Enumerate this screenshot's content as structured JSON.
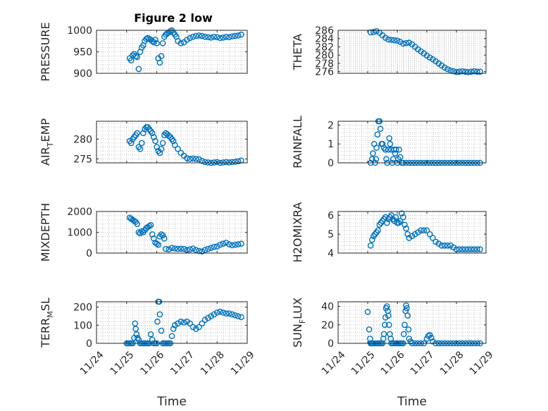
{
  "figure": {
    "title": "Figure 2 low"
  },
  "chart_data": [
    {
      "type": "scatter",
      "ylabel": "PRESSURE",
      "ylabel_sub": "",
      "ylim": [
        900,
        1000
      ],
      "yticks": [
        900,
        950,
        1000
      ],
      "ytick_labels": [
        "900",
        "950",
        "1000"
      ],
      "x_tick_labels_visible": false,
      "xlabel": "",
      "x": [
        1.1,
        1.15,
        1.2,
        1.25,
        1.3,
        1.35,
        1.4,
        1.45,
        1.5,
        1.55,
        1.6,
        1.65,
        1.7,
        1.75,
        1.8,
        1.85,
        1.9,
        1.95,
        2.0,
        2.05,
        2.1,
        2.15,
        2.2,
        2.25,
        2.3,
        2.35,
        2.4,
        2.45,
        2.5,
        2.55,
        2.6,
        2.65,
        2.7,
        2.8,
        2.9,
        3.0,
        3.1,
        3.2,
        3.3,
        3.4,
        3.5,
        3.6,
        3.7,
        3.8,
        3.9,
        4.0,
        4.1,
        4.2,
        4.3,
        4.4,
        4.5,
        4.6,
        4.7,
        4.8
      ],
      "y": [
        935,
        930,
        942,
        945,
        940,
        938,
        910,
        950,
        960,
        965,
        975,
        980,
        982,
        980,
        978,
        975,
        972,
        978,
        970,
        935,
        925,
        940,
        970,
        985,
        990,
        993,
        995,
        998,
        1000,
        995,
        990,
        985,
        975,
        970,
        972,
        978,
        982,
        985,
        987,
        988,
        987,
        985,
        984,
        983,
        985,
        984,
        982,
        983,
        985,
        984,
        986,
        987,
        988,
        990
      ]
    },
    {
      "type": "scatter",
      "ylabel": "THETA",
      "ylabel_sub": "",
      "ylim": [
        275.6,
        286
      ],
      "yticks": [
        276,
        278,
        280,
        282,
        284,
        286
      ],
      "ytick_labels": [
        "276",
        "278",
        "280",
        "282",
        "284",
        "286"
      ],
      "x_tick_labels_visible": false,
      "xlabel": "",
      "x": [
        1.1,
        1.2,
        1.3,
        1.4,
        1.5,
        1.6,
        1.7,
        1.8,
        1.9,
        2.0,
        2.1,
        2.2,
        2.3,
        2.4,
        2.5,
        2.6,
        2.7,
        2.8,
        2.9,
        3.0,
        3.1,
        3.2,
        3.3,
        3.4,
        3.5,
        3.6,
        3.7,
        3.8,
        3.9,
        4.0,
        4.1,
        4.2,
        4.3,
        4.4,
        4.5,
        4.6,
        4.7,
        4.8
      ],
      "y": [
        285.5,
        285.6,
        285.8,
        285.4,
        284.8,
        284.2,
        283.8,
        283.7,
        283.6,
        283.5,
        283.2,
        282.8,
        282.9,
        283.0,
        282.6,
        282.0,
        281.4,
        280.9,
        280.4,
        279.9,
        279.4,
        279.0,
        278.5,
        278.0,
        277.5,
        277.0,
        276.6,
        276.3,
        276.1,
        275.9,
        276.0,
        276.1,
        276.0,
        275.9,
        276.0,
        276.1,
        276.0,
        276.0
      ]
    },
    {
      "type": "scatter",
      "ylabel": "AIR",
      "ylabel_sub": "T",
      "ylabel_tail": "EMP",
      "ylim": [
        274,
        284.5
      ],
      "yticks": [
        275,
        280
      ],
      "ytick_labels": [
        "275",
        "280"
      ],
      "x_tick_labels_visible": false,
      "xlabel": "",
      "x": [
        1.1,
        1.15,
        1.2,
        1.25,
        1.3,
        1.35,
        1.4,
        1.45,
        1.5,
        1.55,
        1.6,
        1.65,
        1.7,
        1.75,
        1.8,
        1.85,
        1.9,
        1.95,
        2.0,
        2.05,
        2.1,
        2.15,
        2.2,
        2.25,
        2.3,
        2.35,
        2.4,
        2.45,
        2.5,
        2.55,
        2.6,
        2.7,
        2.8,
        2.9,
        3.0,
        3.1,
        3.2,
        3.3,
        3.4,
        3.5,
        3.6,
        3.7,
        3.8,
        3.9,
        4.0,
        4.1,
        4.2,
        4.3,
        4.4,
        4.5,
        4.6,
        4.7,
        4.8
      ],
      "y": [
        279.5,
        279.0,
        280.0,
        280.5,
        281.0,
        281.5,
        278.0,
        277.5,
        279.0,
        281.5,
        282.5,
        283.0,
        283.0,
        282.5,
        282.0,
        281.5,
        280.5,
        279.5,
        278.0,
        277.0,
        276.5,
        277.5,
        279.0,
        281.0,
        281.5,
        281.2,
        280.8,
        280.5,
        280.0,
        279.5,
        278.5,
        277.5,
        276.5,
        275.8,
        275.2,
        275.0,
        275.1,
        275.0,
        274.9,
        274.5,
        274.2,
        274.1,
        274.0,
        274.1,
        274.2,
        274.0,
        274.1,
        274.2,
        274.1,
        274.2,
        274.3,
        274.4,
        274.6
      ]
    },
    {
      "type": "scatter",
      "ylabel": "RAINFALL",
      "ylabel_sub": "",
      "ylim": [
        0,
        2.2
      ],
      "yticks": [
        0,
        1,
        2
      ],
      "ytick_labels": [
        "0",
        "1",
        "2"
      ],
      "x_tick_labels_visible": false,
      "xlabel": "",
      "x": [
        1.1,
        1.15,
        1.18,
        1.22,
        1.25,
        1.28,
        1.3,
        1.33,
        1.36,
        1.4,
        1.43,
        1.47,
        1.5,
        1.55,
        1.6,
        1.63,
        1.66,
        1.7,
        1.73,
        1.76,
        1.8,
        1.83,
        1.86,
        1.9,
        1.93,
        1.96,
        2.0,
        2.03,
        2.06,
        2.1,
        2.15,
        2.2,
        2.3,
        2.4,
        2.5,
        2.6,
        2.7,
        2.8,
        2.9,
        3.0,
        3.1,
        3.2,
        3.3,
        3.4,
        3.5,
        3.6,
        3.7,
        3.8,
        3.9,
        4.0,
        4.1,
        4.2,
        4.3,
        4.4,
        4.5,
        4.6,
        4.7,
        4.8
      ],
      "y": [
        0,
        0.2,
        0.5,
        1.0,
        0,
        0.2,
        0.8,
        1.5,
        2.2,
        2.2,
        1.8,
        1.0,
        1.0,
        0.8,
        0.7,
        0.2,
        0,
        0.7,
        1.3,
        1.0,
        0.7,
        0,
        0.2,
        0.7,
        0.5,
        0.7,
        0,
        0.2,
        0.7,
        0.3,
        0,
        0,
        0,
        0,
        0,
        0,
        0,
        0,
        0,
        0,
        0,
        0,
        0,
        0,
        0,
        0,
        0,
        0,
        0,
        0,
        0,
        0,
        0,
        0,
        0,
        0,
        0,
        0
      ]
    },
    {
      "type": "scatter",
      "ylabel": "MIXDEPTH",
      "ylabel_sub": "",
      "ylim": [
        0,
        2000
      ],
      "yticks": [
        0,
        1000,
        2000
      ],
      "ytick_labels": [
        "0",
        "1000",
        "2000"
      ],
      "x_tick_labels_visible": false,
      "xlabel": "",
      "x": [
        1.1,
        1.15,
        1.2,
        1.25,
        1.3,
        1.35,
        1.4,
        1.45,
        1.5,
        1.55,
        1.6,
        1.65,
        1.7,
        1.75,
        1.8,
        1.85,
        1.9,
        1.95,
        2.0,
        2.05,
        2.1,
        2.15,
        2.2,
        2.25,
        2.3,
        2.4,
        2.5,
        2.6,
        2.7,
        2.8,
        2.9,
        3.0,
        3.1,
        3.2,
        3.3,
        3.4,
        3.5,
        3.6,
        3.7,
        3.8,
        3.9,
        4.0,
        4.1,
        4.2,
        4.3,
        4.4,
        4.5,
        4.6,
        4.7,
        4.8
      ],
      "y": [
        1700,
        1650,
        1600,
        1550,
        1500,
        1400,
        1000,
        950,
        1050,
        1000,
        1100,
        1200,
        1250,
        1300,
        1350,
        900,
        700,
        500,
        450,
        400,
        800,
        900,
        850,
        700,
        200,
        180,
        250,
        220,
        200,
        210,
        200,
        150,
        180,
        220,
        150,
        100,
        80,
        150,
        200,
        250,
        300,
        320,
        400,
        450,
        500,
        420,
        380,
        400,
        420,
        450
      ]
    },
    {
      "type": "scatter",
      "ylabel": "H2OMIXRA",
      "ylabel_sub": "",
      "ylim": [
        4,
        6.2
      ],
      "yticks": [
        4,
        5,
        6
      ],
      "ytick_labels": [
        "4",
        "5",
        "6"
      ],
      "x_tick_labels_visible": false,
      "xlabel": "",
      "x": [
        1.1,
        1.15,
        1.2,
        1.25,
        1.3,
        1.35,
        1.4,
        1.45,
        1.5,
        1.55,
        1.6,
        1.65,
        1.7,
        1.75,
        1.8,
        1.85,
        1.9,
        1.95,
        2.0,
        2.05,
        2.1,
        2.15,
        2.2,
        2.25,
        2.3,
        2.35,
        2.4,
        2.5,
        2.6,
        2.7,
        2.8,
        2.9,
        3.0,
        3.1,
        3.2,
        3.3,
        3.4,
        3.5,
        3.6,
        3.7,
        3.8,
        3.9,
        4.0,
        4.1,
        4.2,
        4.3,
        4.4,
        4.5,
        4.6,
        4.7,
        4.8
      ],
      "y": [
        4.4,
        4.7,
        4.9,
        5.0,
        5.1,
        5.2,
        5.5,
        5.6,
        5.7,
        5.8,
        5.9,
        5.6,
        5.8,
        5.9,
        6.0,
        5.8,
        5.7,
        5.9,
        5.6,
        5.6,
        5.7,
        6.1,
        5.9,
        5.5,
        5.3,
        5.0,
        4.8,
        4.9,
        5.0,
        5.1,
        5.2,
        5.2,
        5.2,
        5.0,
        4.8,
        4.6,
        4.5,
        4.4,
        4.4,
        4.4,
        4.4,
        4.3,
        4.2,
        4.2,
        4.2,
        4.2,
        4.2,
        4.2,
        4.2,
        4.2,
        4.2
      ]
    },
    {
      "type": "scatter",
      "ylabel": "TERR",
      "ylabel_sub": "M",
      "ylabel_tail": "SL",
      "ylim": [
        0,
        230
      ],
      "yticks": [
        0,
        100,
        200
      ],
      "ytick_labels": [
        "0",
        "100",
        "200"
      ],
      "x_tick_labels_visible": true,
      "xlabel": "Time",
      "x": [
        1.0,
        1.05,
        1.1,
        1.15,
        1.2,
        1.25,
        1.28,
        1.3,
        1.33,
        1.36,
        1.4,
        1.45,
        1.5,
        1.55,
        1.6,
        1.65,
        1.7,
        1.75,
        1.8,
        1.85,
        1.9,
        1.95,
        2.0,
        2.02,
        2.05,
        2.08,
        2.1,
        2.15,
        2.2,
        2.25,
        2.3,
        2.35,
        2.4,
        2.45,
        2.5,
        2.55,
        2.6,
        2.7,
        2.8,
        2.9,
        3.0,
        3.1,
        3.2,
        3.3,
        3.4,
        3.5,
        3.6,
        3.7,
        3.8,
        3.9,
        4.0,
        4.1,
        4.2,
        4.3,
        4.4,
        4.5,
        4.6,
        4.7,
        4.8
      ],
      "y": [
        0,
        0,
        0,
        0,
        0,
        30,
        110,
        80,
        50,
        30,
        20,
        0,
        0,
        0,
        0,
        0,
        0,
        0,
        50,
        20,
        0,
        0,
        0,
        120,
        230,
        230,
        160,
        70,
        0,
        0,
        0,
        0,
        0,
        0,
        40,
        80,
        100,
        110,
        120,
        115,
        120,
        110,
        90,
        80,
        90,
        110,
        130,
        140,
        150,
        160,
        170,
        175,
        170,
        165,
        165,
        160,
        155,
        150,
        145
      ]
    },
    {
      "type": "scatter",
      "ylabel": "SUN",
      "ylabel_sub": "F",
      "ylabel_tail": "LUX",
      "ylim": [
        0,
        45
      ],
      "yticks": [
        0,
        20,
        40
      ],
      "ytick_labels": [
        "0",
        "20",
        "40"
      ],
      "x_tick_labels_visible": true,
      "xlabel": "Time",
      "x": [
        1.0,
        1.05,
        1.08,
        1.1,
        1.13,
        1.16,
        1.2,
        1.25,
        1.3,
        1.35,
        1.4,
        1.45,
        1.5,
        1.53,
        1.55,
        1.58,
        1.6,
        1.62,
        1.65,
        1.68,
        1.7,
        1.72,
        1.75,
        1.78,
        1.8,
        1.85,
        1.9,
        1.95,
        2.0,
        2.05,
        2.1,
        2.15,
        2.2,
        2.22,
        2.25,
        2.28,
        2.3,
        2.32,
        2.35,
        2.38,
        2.4,
        2.45,
        2.5,
        2.6,
        2.7,
        2.8,
        2.9,
        3.0,
        3.05,
        3.1,
        3.15,
        3.2,
        3.3,
        3.4,
        3.5,
        3.6,
        3.7,
        3.8,
        3.9,
        4.0,
        4.1,
        4.2,
        4.3,
        4.4,
        4.5,
        4.6,
        4.7,
        4.8
      ],
      "y": [
        34,
        15,
        5,
        0,
        0,
        0,
        0,
        0,
        0,
        0,
        0,
        0,
        0,
        5,
        10,
        20,
        28,
        38,
        40,
        35,
        30,
        20,
        10,
        5,
        0,
        0,
        0,
        0,
        0,
        0,
        0,
        0,
        0,
        10,
        20,
        35,
        41,
        38,
        30,
        15,
        5,
        2,
        0,
        0,
        0,
        0,
        0,
        5,
        8,
        9,
        6,
        2,
        0,
        0,
        0,
        0,
        0,
        0,
        0,
        0,
        0,
        0,
        0,
        0,
        0,
        0,
        0,
        0
      ]
    }
  ],
  "shared_x": {
    "xlim": [
      0,
      5
    ],
    "ticks": [
      0,
      1,
      2,
      3,
      4,
      5
    ],
    "tick_labels": [
      "11/24",
      "11/25",
      "11/26",
      "11/27",
      "11/28",
      "11/29"
    ]
  },
  "colors": {
    "marker": "#0072bd",
    "axes": "#262626",
    "grid": "#b0b0b0"
  }
}
